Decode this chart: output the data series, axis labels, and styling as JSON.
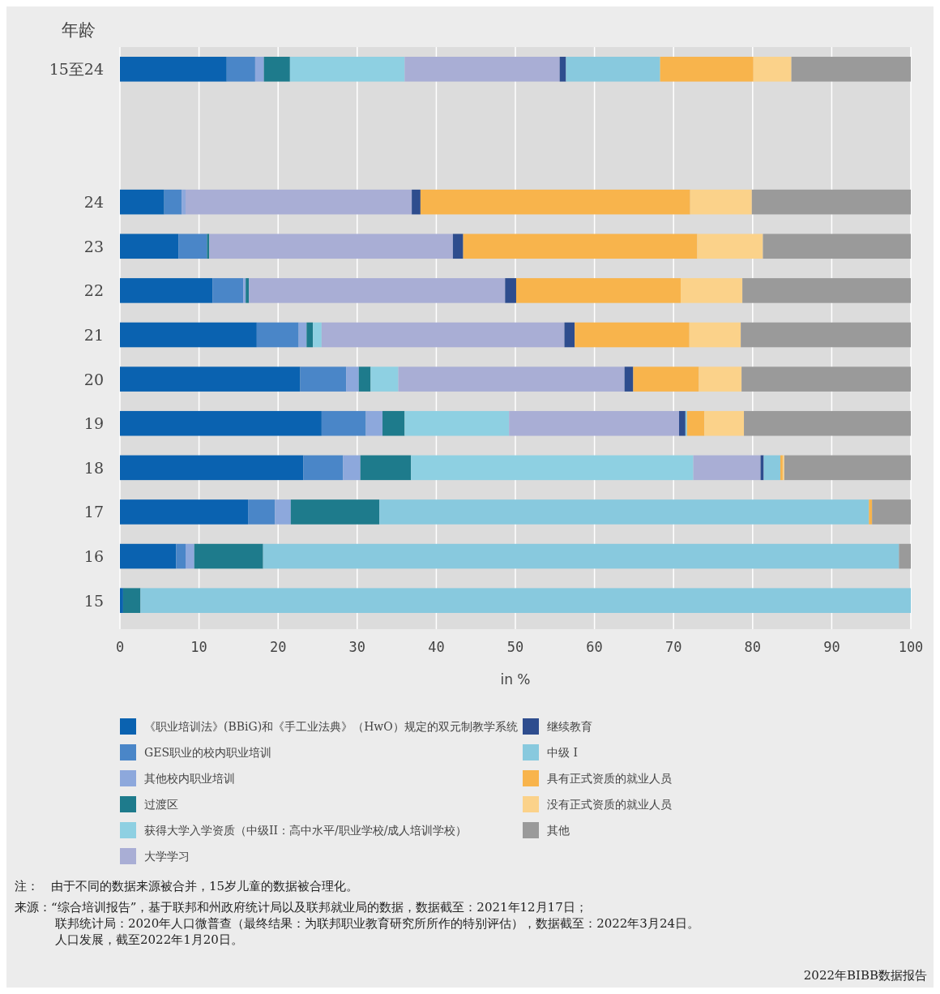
{
  "chart_data": {
    "type": "bar",
    "orientation": "horizontal",
    "stacked": true,
    "ylabel": "年龄",
    "xlabel": "in %",
    "categories": [
      "15至24",
      null,
      null,
      "24",
      "23",
      "22",
      "21",
      "20",
      "19",
      "18",
      "17",
      "16",
      "15"
    ],
    "xlim": [
      0,
      100
    ],
    "xticks": [
      0,
      10,
      20,
      30,
      40,
      50,
      60,
      70,
      80,
      90,
      100
    ],
    "grid": "x",
    "legend": "bottom",
    "series": [
      {
        "name": "《职业培训法》(BBiG)和《手工业法典》（HwO）规定的双元制教学系统",
        "color": "#0a62b0",
        "values": [
          13.5,
          null,
          null,
          5.6,
          7.4,
          11.7,
          17.3,
          22.8,
          25.5,
          23.2,
          16.2,
          7.1,
          0.4
        ]
      },
      {
        "name": "GES职业的校内职业培训",
        "color": "#4a86c8",
        "values": [
          3.6,
          null,
          null,
          2.2,
          3.6,
          3.9,
          5.3,
          5.8,
          5.6,
          5.0,
          3.4,
          1.2,
          0
        ]
      },
      {
        "name": "其他校内职业培训",
        "color": "#8da8dc",
        "values": [
          1.1,
          null,
          null,
          0.5,
          0,
          0.3,
          1.0,
          1.6,
          2.1,
          2.2,
          2.0,
          1.1,
          0
        ]
      },
      {
        "name": "过渡区",
        "color": "#1e7b8c",
        "values": [
          3.3,
          null,
          null,
          0,
          0.3,
          0.4,
          0.8,
          1.5,
          2.8,
          6.4,
          11.2,
          8.7,
          2.2
        ]
      },
      {
        "name": "获得大学入学资质（中级II：高中水平/职业学校/成人培训学校）",
        "color": "#8ed0e2",
        "values": [
          14.5,
          null,
          null,
          0,
          0,
          0,
          1.1,
          3.5,
          13.2,
          35.7,
          0,
          0,
          0
        ]
      },
      {
        "name": "大学学习",
        "color": "#a9aed5",
        "values": [
          19.6,
          null,
          null,
          28.6,
          30.8,
          32.4,
          30.7,
          28.6,
          21.5,
          8.5,
          0,
          0,
          0
        ]
      },
      {
        "name": "继续教育",
        "color": "#2e4d8e",
        "values": [
          0.8,
          null,
          null,
          1.1,
          1.3,
          1.4,
          1.3,
          1.1,
          0.8,
          0.4,
          0,
          0,
          0
        ]
      },
      {
        "name": "中级 I",
        "color": "#88c9de",
        "values": [
          11.9,
          null,
          null,
          0,
          0,
          0,
          0,
          0,
          0.2,
          2.1,
          61.9,
          80.4,
          97.4
        ]
      },
      {
        "name": "具有正式资质的就业人员",
        "color": "#f8b44c",
        "values": [
          11.8,
          null,
          null,
          34.1,
          29.6,
          20.8,
          14.5,
          8.3,
          2.2,
          0.3,
          0.4,
          0,
          0
        ]
      },
      {
        "name": "没有正式资质的就业人员",
        "color": "#fbd28a",
        "values": [
          4.8,
          null,
          null,
          7.8,
          8.3,
          7.8,
          6.5,
          5.4,
          5.0,
          0.2,
          0,
          0,
          0
        ]
      },
      {
        "name": "其他",
        "color": "#9a9a9a",
        "values": [
          15.1,
          null,
          null,
          20.1,
          18.7,
          21.3,
          21.5,
          21.4,
          21.1,
          16.0,
          4.9,
          1.5,
          0
        ]
      }
    ],
    "annotations": [
      "注：　由于不同的数据来源被合并，15岁儿童的数据被合理化。",
      "来源：“综合培训报告”，基于联邦和州政府统计局以及联邦就业局的数据，数据截至：2021年12月17日；联邦统计局：2020年人口微普查（最终结果：为联邦职业教育研究所所作的特别评估），数据截至：2022年3月24日。人口发展，截至2022年1月20日。",
      "2022年BIBB数据报告"
    ]
  }
}
